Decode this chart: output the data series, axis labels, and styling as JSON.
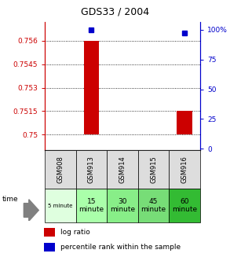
{
  "title": "GDS33 / 2004",
  "samples": [
    "GSM908",
    "GSM913",
    "GSM914",
    "GSM915",
    "GSM916"
  ],
  "log_ratios": [
    0.75,
    0.756,
    0.75,
    0.75,
    0.7515
  ],
  "percentile_ranks": [
    null,
    100.0,
    null,
    null,
    97.0
  ],
  "ylim_left": [
    0.749,
    0.7572
  ],
  "yticks_left": [
    0.75,
    0.7515,
    0.753,
    0.7545,
    0.756
  ],
  "ylim_right": [
    -1.333,
    106.67
  ],
  "yticks_right": [
    0,
    25,
    50,
    75,
    100
  ],
  "left_tick_color": "#cc0000",
  "right_tick_color": "#0000cc",
  "bar_color": "#cc0000",
  "dot_color": "#0000cc",
  "bar_width": 0.5,
  "baseline": 0.75,
  "gsm_bg": "#dddddd",
  "time_bg_colors": [
    "#dfffdf",
    "#aaffaa",
    "#88ee88",
    "#77dd77",
    "#33bb33"
  ],
  "time_texts": [
    "5 minute",
    "15\nminute",
    "30\nminute",
    "45\nminute",
    "60\nminute"
  ],
  "time_small": [
    true,
    false,
    false,
    false,
    false
  ],
  "legend_bar_label": "log ratio",
  "legend_dot_label": "percentile rank within the sample"
}
